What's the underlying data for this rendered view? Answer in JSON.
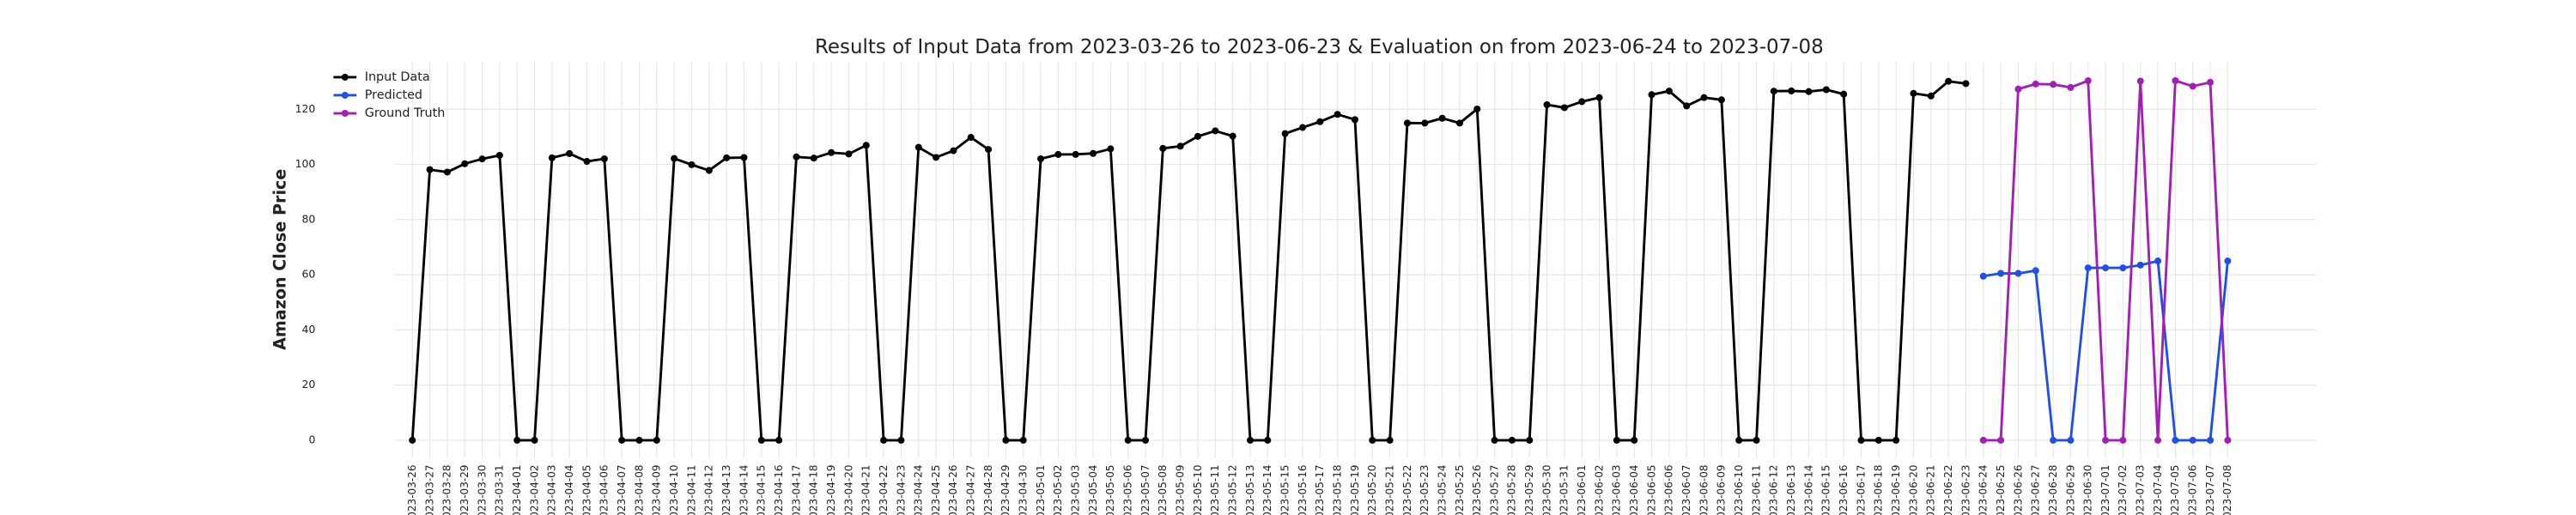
{
  "chart_data": {
    "type": "line",
    "title": "Results of Input Data from 2023-03-26 to 2023-06-23 & Evaluation on from 2023-06-24 to 2023-07-08",
    "y_label": "Amazon Close Price",
    "x": [
      "2023-03-26",
      "2023-03-27",
      "2023-03-28",
      "2023-03-29",
      "2023-03-30",
      "2023-03-31",
      "2023-04-01",
      "2023-04-02",
      "2023-04-03",
      "2023-04-04",
      "2023-04-05",
      "2023-04-06",
      "2023-04-07",
      "2023-04-08",
      "2023-04-09",
      "2023-04-10",
      "2023-04-11",
      "2023-04-12",
      "2023-04-13",
      "2023-04-14",
      "2023-04-15",
      "2023-04-16",
      "2023-04-17",
      "2023-04-18",
      "2023-04-19",
      "2023-04-20",
      "2023-04-21",
      "2023-04-22",
      "2023-04-23",
      "2023-04-24",
      "2023-04-25",
      "2023-04-26",
      "2023-04-27",
      "2023-04-28",
      "2023-04-29",
      "2023-04-30",
      "2023-05-01",
      "2023-05-02",
      "2023-05-03",
      "2023-05-04",
      "2023-05-05",
      "2023-05-06",
      "2023-05-07",
      "2023-05-08",
      "2023-05-09",
      "2023-05-10",
      "2023-05-11",
      "2023-05-12",
      "2023-05-13",
      "2023-05-14",
      "2023-05-15",
      "2023-05-16",
      "2023-05-17",
      "2023-05-18",
      "2023-05-19",
      "2023-05-20",
      "2023-05-21",
      "2023-05-22",
      "2023-05-23",
      "2023-05-24",
      "2023-05-25",
      "2023-05-26",
      "2023-05-27",
      "2023-05-28",
      "2023-05-29",
      "2023-05-30",
      "2023-05-31",
      "2023-06-01",
      "2023-06-02",
      "2023-06-03",
      "2023-06-04",
      "2023-06-05",
      "2023-06-06",
      "2023-06-07",
      "2023-06-08",
      "2023-06-09",
      "2023-06-10",
      "2023-06-11",
      "2023-06-12",
      "2023-06-13",
      "2023-06-14",
      "2023-06-15",
      "2023-06-16",
      "2023-06-17",
      "2023-06-18",
      "2023-06-19",
      "2023-06-20",
      "2023-06-21",
      "2023-06-22",
      "2023-06-23",
      "2023-06-24",
      "2023-06-25",
      "2023-06-26",
      "2023-06-27",
      "2023-06-28",
      "2023-06-29",
      "2023-06-30",
      "2023-07-01",
      "2023-07-02",
      "2023-07-03",
      "2023-07-04",
      "2023-07-05",
      "2023-07-06",
      "2023-07-07",
      "2023-07-08"
    ],
    "series": [
      {
        "name": "Input Data",
        "color": "#000000",
        "values": [
          0,
          98.13,
          97.24,
          100.25,
          102.0,
          103.29,
          0,
          0,
          102.41,
          103.95,
          101.1,
          102.06,
          0,
          0,
          0,
          102.17,
          99.92,
          97.83,
          102.4,
          102.51,
          0,
          0,
          102.74,
          102.3,
          104.3,
          103.81,
          106.96,
          0,
          0,
          106.21,
          102.57,
          104.98,
          109.82,
          105.45,
          0,
          0,
          102.05,
          103.63,
          103.65,
          104.0,
          105.66,
          0,
          0,
          105.83,
          106.62,
          110.19,
          112.18,
          110.26,
          0,
          0,
          111.2,
          113.4,
          115.5,
          118.15,
          116.25,
          0,
          0,
          115.01,
          114.99,
          116.75,
          115.0,
          120.11,
          0,
          0,
          0,
          121.66,
          120.58,
          122.77,
          124.25,
          0,
          0,
          125.3,
          126.61,
          121.23,
          124.25,
          123.43,
          0,
          0,
          126.57,
          126.66,
          126.42,
          127.11,
          125.49,
          0,
          0,
          0,
          125.78,
          124.83,
          130.15,
          129.33,
          null,
          null,
          null,
          null,
          null,
          null,
          null,
          null,
          null,
          null,
          null,
          null,
          null,
          null,
          null
        ]
      },
      {
        "name": "Predicted",
        "color": "#1f4fe8",
        "values": [
          null,
          null,
          null,
          null,
          null,
          null,
          null,
          null,
          null,
          null,
          null,
          null,
          null,
          null,
          null,
          null,
          null,
          null,
          null,
          null,
          null,
          null,
          null,
          null,
          null,
          null,
          null,
          null,
          null,
          null,
          null,
          null,
          null,
          null,
          null,
          null,
          null,
          null,
          null,
          null,
          null,
          null,
          null,
          null,
          null,
          null,
          null,
          null,
          null,
          null,
          null,
          null,
          null,
          null,
          null,
          null,
          null,
          null,
          null,
          null,
          null,
          null,
          null,
          null,
          null,
          null,
          null,
          null,
          null,
          null,
          null,
          null,
          null,
          null,
          null,
          null,
          null,
          null,
          null,
          null,
          null,
          null,
          null,
          null,
          null,
          null,
          null,
          null,
          null,
          null,
          59.5,
          60.5,
          60.5,
          61.5,
          0,
          0,
          62.5,
          62.5,
          62.5,
          63.5,
          65,
          0,
          0,
          0,
          65
        ]
      },
      {
        "name": "Ground Truth",
        "color": "#a41db8",
        "values": [
          null,
          null,
          null,
          null,
          null,
          null,
          null,
          null,
          null,
          null,
          null,
          null,
          null,
          null,
          null,
          null,
          null,
          null,
          null,
          null,
          null,
          null,
          null,
          null,
          null,
          null,
          null,
          null,
          null,
          null,
          null,
          null,
          null,
          null,
          null,
          null,
          null,
          null,
          null,
          null,
          null,
          null,
          null,
          null,
          null,
          null,
          null,
          null,
          null,
          null,
          null,
          null,
          null,
          null,
          null,
          null,
          null,
          null,
          null,
          null,
          null,
          null,
          null,
          null,
          null,
          null,
          null,
          null,
          null,
          null,
          null,
          null,
          null,
          null,
          null,
          null,
          null,
          null,
          null,
          null,
          null,
          null,
          null,
          null,
          null,
          null,
          null,
          null,
          null,
          null,
          0,
          0,
          127.33,
          129.18,
          129.04,
          127.9,
          130.36,
          0,
          0,
          130.22,
          0,
          130.38,
          128.36,
          129.78,
          0
        ]
      }
    ],
    "ylim": [
      -6.5,
      137
    ],
    "yticks": [
      0,
      20,
      40,
      60,
      80,
      100,
      120
    ],
    "grid": true,
    "legend": "upper left"
  }
}
